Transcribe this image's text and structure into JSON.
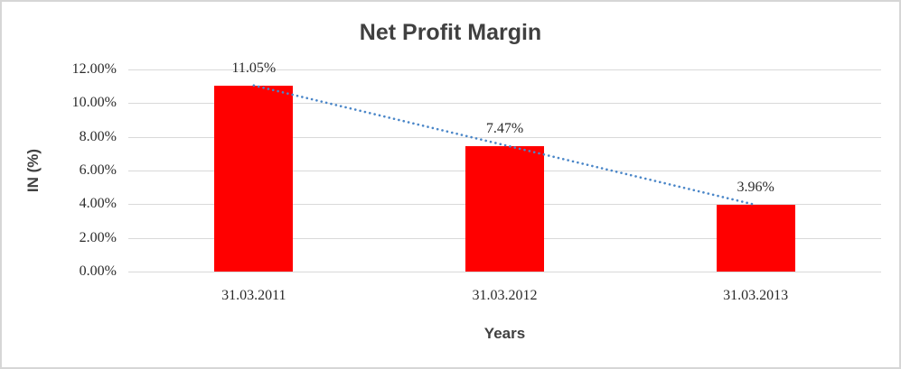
{
  "chart_data": {
    "type": "bar",
    "title": "Net Profit Margin",
    "xlabel": "Years",
    "ylabel": "IN (%)",
    "categories": [
      "31.03.2011",
      "31.03.2012",
      "31.03.2013"
    ],
    "series": [
      {
        "name": "Net Profit Margin",
        "values": [
          11.05,
          7.47,
          3.96
        ]
      }
    ],
    "data_labels": [
      "11.05%",
      "7.47%",
      "3.96%"
    ],
    "ylim": [
      0,
      12
    ],
    "ytick_step": 2,
    "ytick_labels": [
      "0.00%",
      "2.00%",
      "4.00%",
      "6.00%",
      "8.00%",
      "10.00%",
      "12.00%"
    ],
    "grid": true,
    "legend": "none",
    "bar_color": "#ff0000",
    "gridline_color": "#d9d9d9",
    "trendline": {
      "type": "linear",
      "style": "dotted",
      "color": "#4a86c8"
    }
  }
}
